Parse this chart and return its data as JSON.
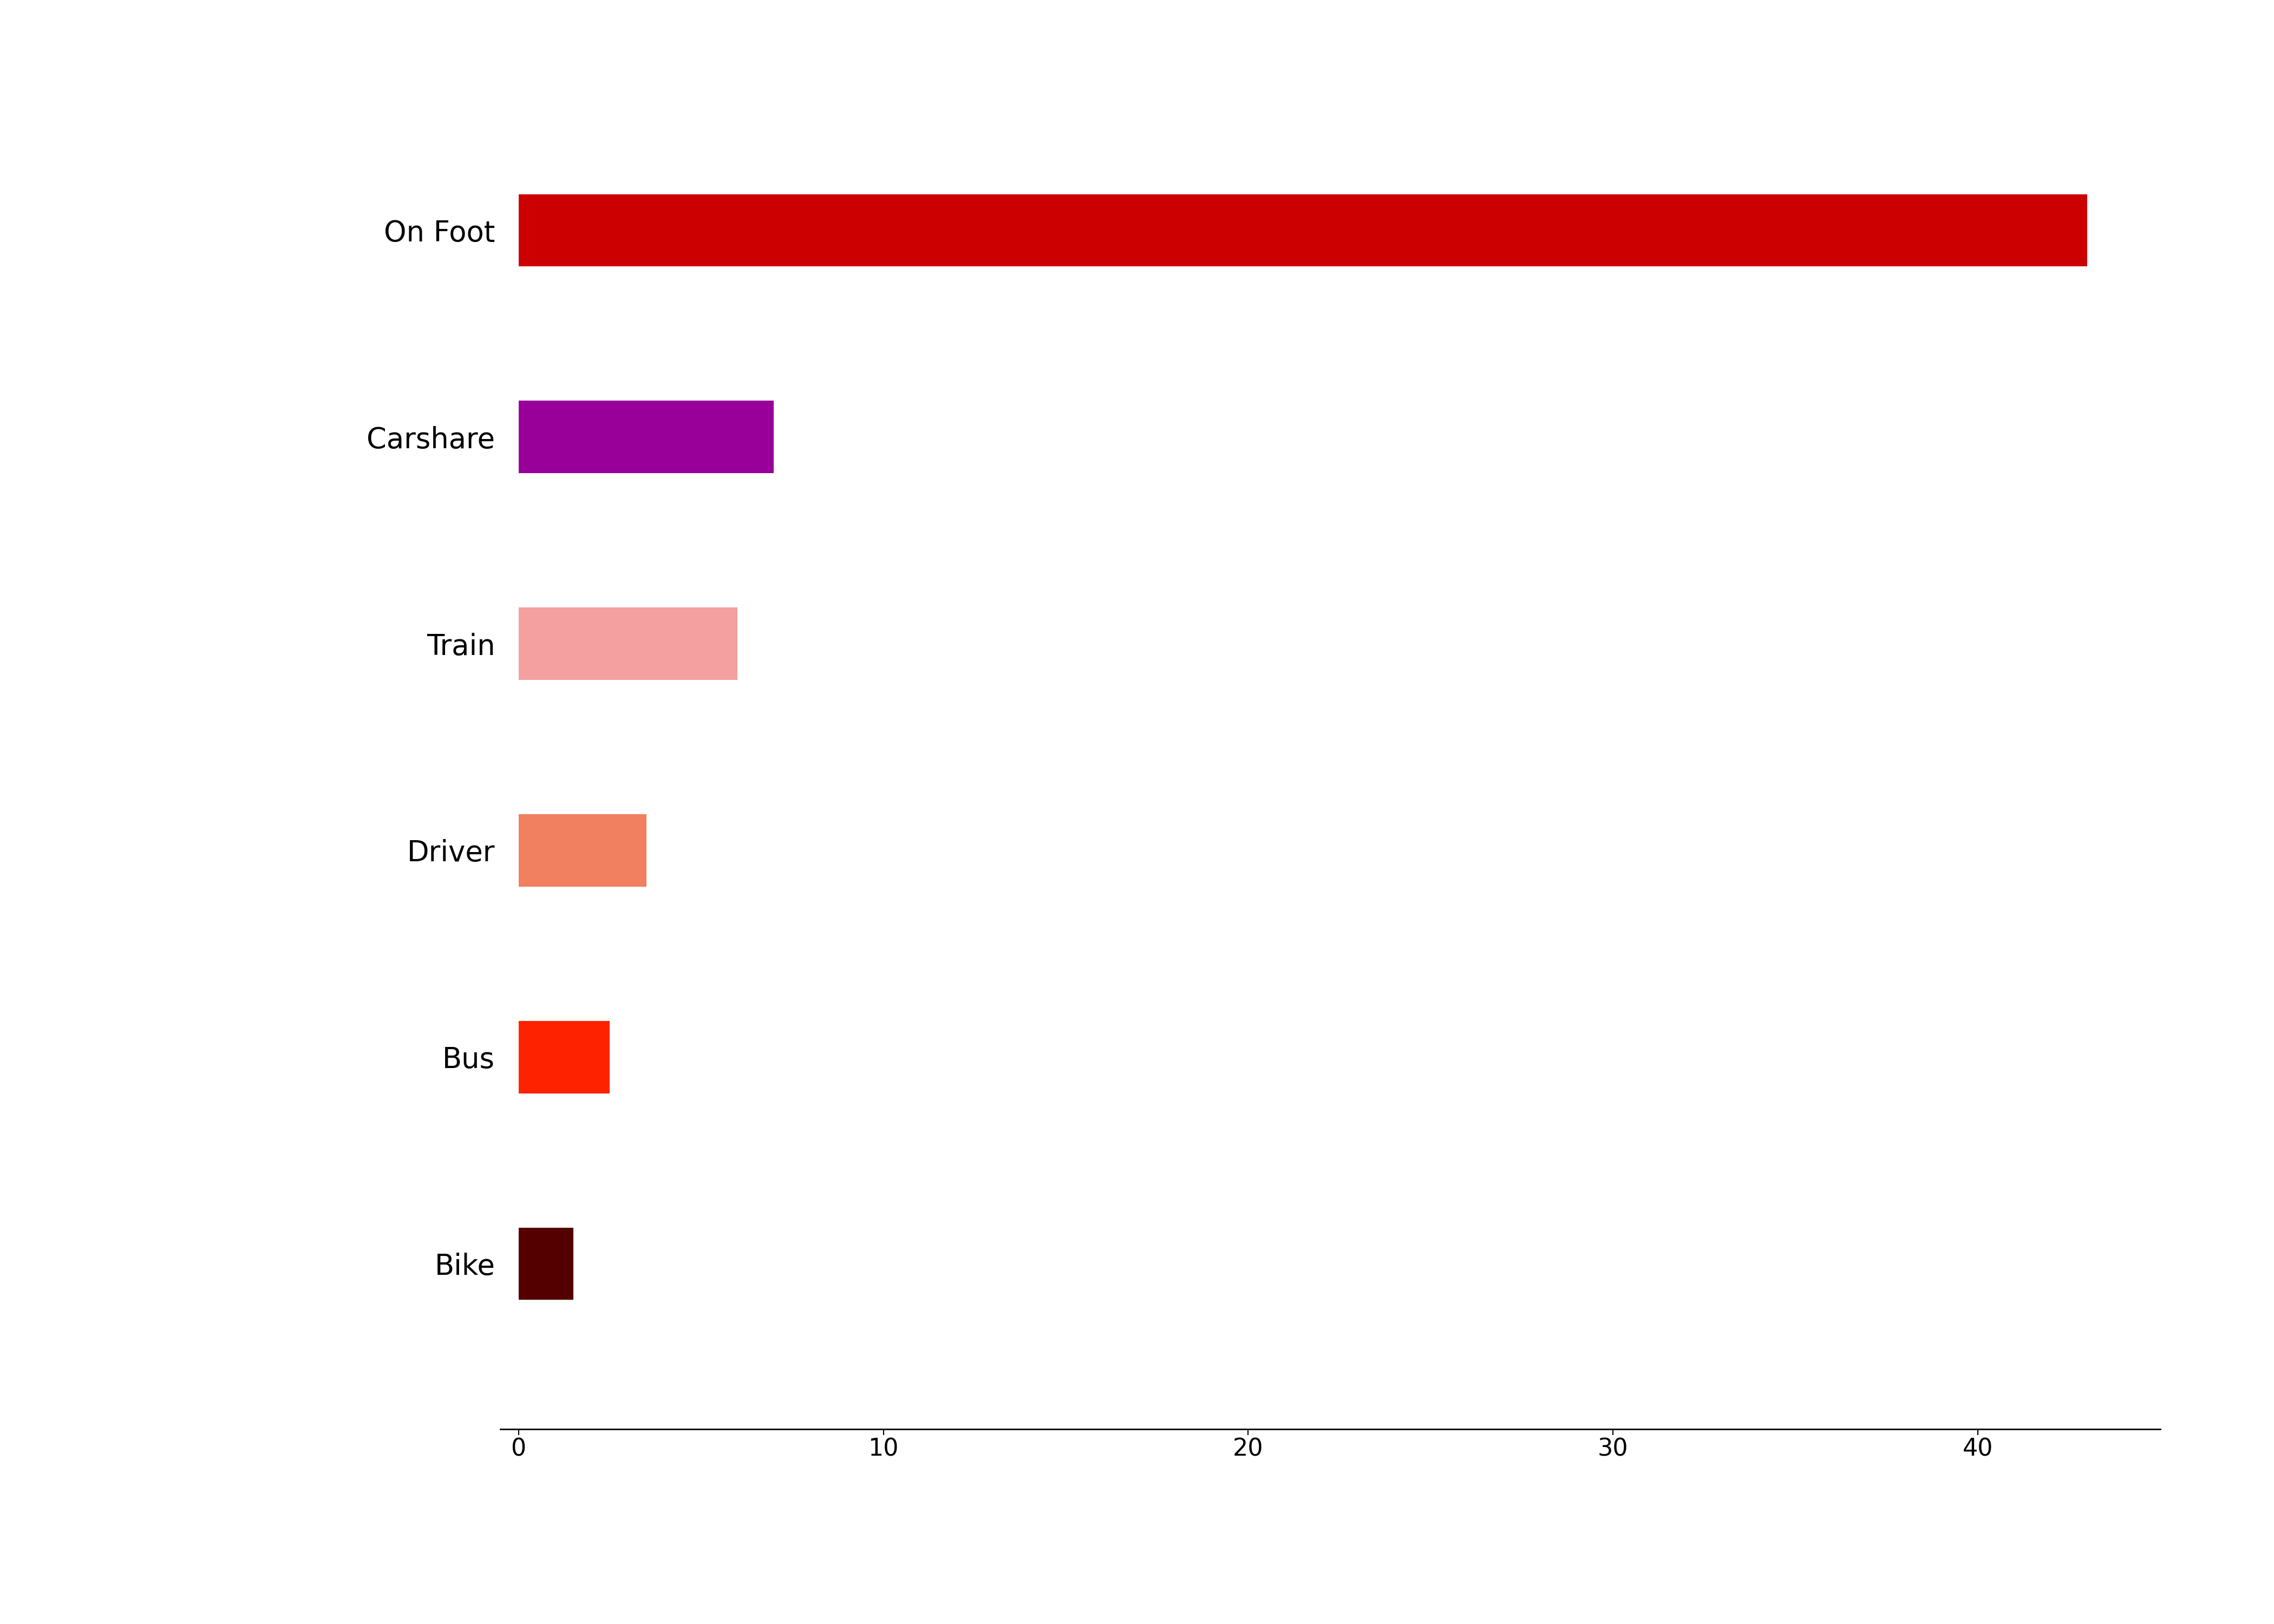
{
  "categories": [
    "On Foot",
    "Carshare",
    "Train",
    "Driver",
    "Bus",
    "Bike"
  ],
  "values": [
    43,
    7,
    6,
    3.5,
    2.5,
    1.5
  ],
  "colors": [
    "#CC0000",
    "#990099",
    "#F4A0A0",
    "#F08060",
    "#FF2200",
    "#550000"
  ],
  "xlim": [
    -0.5,
    45
  ],
  "xticks": [
    0,
    10,
    20,
    30,
    40
  ],
  "background_color": "#ffffff",
  "label_fontsize": 38,
  "tick_fontsize": 32,
  "bar_height": 0.35
}
